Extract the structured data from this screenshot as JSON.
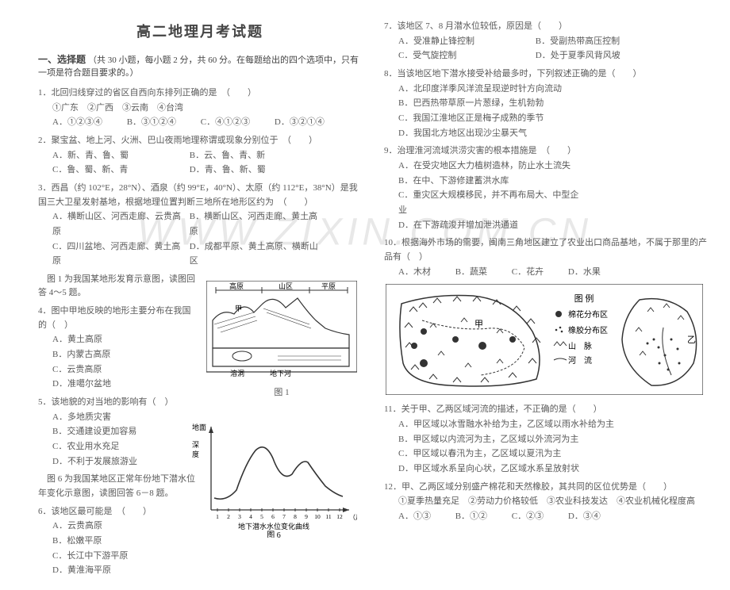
{
  "watermark": "WWW.ZIXIN.COM.CN",
  "header": {
    "title": "高二地理月考试题"
  },
  "section1": {
    "heading": "一、选择题",
    "instruction": "（共 30 小题，每小题 2 分，共 60 分。在每题给出的四个选项中，只有一项是符合题目要求的。）"
  },
  "q1": {
    "stem": "1．北回归线穿过的省区自西向东排列正确的是　（　　）",
    "sub": "①广东　②广西　③云南　④台湾",
    "A": "A．①②③④",
    "B": "B．③①②④",
    "C": "C．④①②③",
    "D": "D．③②①④"
  },
  "q2": {
    "stem": "2．聚宝盆、地上河、火洲、巴山夜雨地理称谓或现象分别位于　（　　）",
    "A": "A．新、青、鲁、蜀",
    "B": "B．云、鲁、青、新",
    "C": "C．鲁、蜀、新、青",
    "D": "D．青、鲁、新、蜀"
  },
  "q3": {
    "stem": "3．西昌（约 102°E，28°N）、酒泉（约 99°E，40°N）、太原（约 112°E，38°N）是我国三大卫星发射基地，根据地理位置判断三地所在地形区约为　（　　）",
    "A": "A．横断山区、河西走廊、云贵高原",
    "B": "B．横断山区、河西走廊、黄土高原",
    "C": "C．四川盆地、河西走廊、黄土高原",
    "D": "D．成都平原、黄土高原、横断山区"
  },
  "lead45": "　图 1 为我国某地形发育示意图，读图回答 4～5 题。",
  "q4": {
    "stem": "4．图中甲地反映的地形主要分布在我国的（　）",
    "A": "A．黄土高原",
    "B": "B．内蒙古高原",
    "C": "C．云贵高原",
    "D": "D．准噶尔盆地"
  },
  "q5": {
    "stem": "5．该地貌的对当地的影响有（　）",
    "A": "A．多地质灾害",
    "B": "B．交通建设更加容易",
    "C": "C．农业用水充足",
    "D": "D．不利于发展旅游业"
  },
  "lead68": "　图 6 为我国某地区正常年份地下潜水位年变化示意图，读图回答 6－8 题。",
  "q6": {
    "stem": "6．该地区最可能是　（　　）",
    "A": "A．云贵高原",
    "B": "B．松嫩平原",
    "C": "C．长江中下游平原",
    "D": "D．黄淮海平原"
  },
  "q7": {
    "stem": "7．该地区 7、8 月潜水位较低，原因是（　　）",
    "A": "A．受准静止锋控制",
    "B": "B．受副热带高压控制",
    "C": "C．受气旋控制",
    "D": "D．处于夏季风背风坡"
  },
  "q8": {
    "stem": "8．当该地区地下潜水接受补给最多时，下列叙述正确的是（　　）",
    "A": "A．北印度洋季风洋流呈现逆时针方向流动",
    "B": "B．巴西热带草原一片葱绿，生机勃勃",
    "C": "C．我国江淮地区正是梅子成熟的季节",
    "D": "D．我国北方地区出现沙尘暴天气"
  },
  "q9": {
    "stem": "9．治理淮河流域洪涝灾害的根本措施是　（　　）",
    "A": "A．在受灾地区大力植树造林，防止水土流失",
    "B": "B．在中、下游修建蓄洪水库",
    "C": "C．重灾区大规模移民，并不再布局大、中型企业",
    "D": "D．在下游疏浚并增加泄洪通道"
  },
  "q10": {
    "stem": "10．根据海外市场的需要，闽南三角地区建立了农业出口商品基地，不属于那里的产品有（　）",
    "A": "A．木材",
    "B": "B．蔬菜",
    "C": "C．花卉",
    "D": "D．水果"
  },
  "map": {
    "legend_title": "图 例",
    "leg1": "棉花分布区",
    "leg2": "橡胶分布区",
    "leg3": "山　脉",
    "leg4": "河　流",
    "label_a": "甲",
    "label_b": "乙"
  },
  "q11": {
    "stem": "11．关于甲、乙两区域河流的描述，不正确的是（　　）",
    "A": "A．甲区域以冰雪融水补给为主，乙区域以雨水补给为主",
    "B": "B．甲区域以内流河为主，乙区域以外流河为主",
    "C": "C．甲区域以春汛为主，乙区域以夏汛为主",
    "D": "D．甲区域水系呈向心状，乙区域水系呈放射状"
  },
  "q12": {
    "stem": "12．甲、乙两区域分别盛产棉花和天然橡胶，其共同的区位优势是（　　）",
    "sub": "①夏季热量充足　②劳动力价格较低　③农业科技发达　④农业机械化程度高",
    "A": "A．①③",
    "B": "B．①②",
    "C": "C．②③",
    "D": "D．③④"
  },
  "fig1": {
    "labels": {
      "gaoyuan": "高原",
      "shanqu": "山区",
      "pingyuan": "平原",
      "rongdong": "溶洞",
      "dixiahe": "地下河",
      "cap": "图 1",
      "jia": "甲"
    }
  },
  "fig6": {
    "ylabel_top": "地面",
    "ylabel": "深度",
    "xlabel": "地下潜水水位变化曲线",
    "xunit": "（月）",
    "months": [
      "1",
      "2",
      "3",
      "4",
      "5",
      "6",
      "7",
      "8",
      "9",
      "10",
      "11",
      "12"
    ],
    "cap": "图 6"
  }
}
